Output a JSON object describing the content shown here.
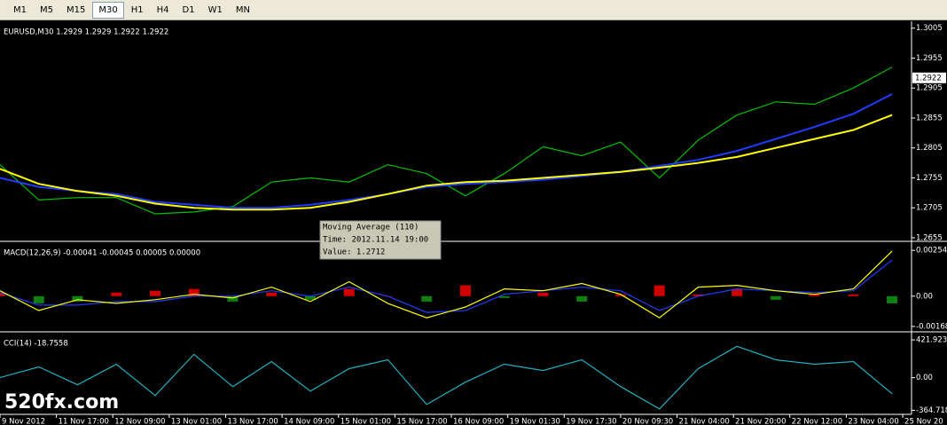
{
  "toolbar": {
    "buttons": [
      "M1",
      "M5",
      "M15",
      "M30",
      "H1",
      "H4",
      "D1",
      "W1",
      "MN"
    ],
    "active_index": 3
  },
  "last_price": 1.2922,
  "tooltip": {
    "lines": [
      "Moving Average (110)",
      "Time: 2012.11.14 19:00",
      "Value: 1.2712"
    ]
  },
  "watermark": "520fx.com",
  "chart_data": [
    {
      "type": "line",
      "title": "EURUSD,M30  1.2929 1.2929 1.2922 1.2922",
      "x": [
        0,
        22,
        44,
        66,
        88,
        110,
        132,
        154,
        176,
        198,
        220,
        242,
        264,
        286,
        308,
        330,
        352,
        374,
        396,
        418,
        440,
        462,
        484,
        506
      ],
      "xlim": [
        0,
        517
      ],
      "ylim": [
        1.26505,
        1.3015
      ],
      "yticks": [
        1.3005,
        1.2955,
        1.2905,
        1.2855,
        1.2805,
        1.2755,
        1.2705,
        1.2655
      ],
      "series": [
        {
          "kind": "line",
          "color": "#00c000",
          "values": [
            1.2777,
            1.2718,
            1.2722,
            1.2722,
            1.2695,
            1.2698,
            1.2707,
            1.2748,
            1.2755,
            1.2748,
            1.2777,
            1.2762,
            1.2725,
            1.2762,
            1.2807,
            1.2792,
            1.2815,
            1.2755,
            1.2818,
            1.286,
            1.2882,
            1.2878,
            1.2905,
            1.294
          ]
        },
        {
          "kind": "line",
          "color": "#1f3cff",
          "values": [
            1.2755,
            1.274,
            1.2733,
            1.2728,
            1.2715,
            1.271,
            1.2705,
            1.2705,
            1.271,
            1.2718,
            1.2728,
            1.274,
            1.2745,
            1.2748,
            1.2752,
            1.2758,
            1.2765,
            1.2775,
            1.2785,
            1.28,
            1.282,
            1.284,
            1.2862,
            1.2895
          ]
        },
        {
          "kind": "line",
          "color": "#ffff00",
          "values": [
            1.277,
            1.2745,
            1.2733,
            1.2725,
            1.2712,
            1.2705,
            1.2702,
            1.2702,
            1.2705,
            1.2715,
            1.2728,
            1.2742,
            1.2748,
            1.275,
            1.2755,
            1.276,
            1.2765,
            1.2772,
            1.278,
            1.279,
            1.2805,
            1.282,
            1.2835,
            1.286
          ]
        }
      ]
    },
    {
      "type": "line",
      "title": "MACD(12,26,9) -0.00041 -0.00045 0.00005 0.00000",
      "x": [
        0,
        22,
        44,
        66,
        88,
        110,
        132,
        154,
        176,
        198,
        220,
        242,
        264,
        286,
        308,
        330,
        352,
        374,
        396,
        418,
        440,
        462,
        484,
        506
      ],
      "xlim": [
        0,
        517
      ],
      "ylim": [
        -0.00193,
        0.00294
      ],
      "yticks": [
        0.00254,
        {
          "value": 0,
          "label": "0.00"
        },
        -0.00168
      ],
      "series": [
        {
          "kind": "bar",
          "color": "#d00000",
          "negative_color": "#108010",
          "values": [
            0.0002,
            -0.0004,
            -0.0003,
            0.0002,
            0.0003,
            0.0004,
            -0.0003,
            0.0002,
            -0.0002,
            0.0004,
            0.0,
            -0.0003,
            0.0006,
            -0.0001,
            0.0002,
            -0.0003,
            0.0001,
            0.0006,
            0.0001,
            0.0004,
            -0.0002,
            0.0001,
            0.0001,
            -0.0004
          ]
        },
        {
          "kind": "line",
          "color": "#1f3cff",
          "values": [
            0.0002,
            -0.0005,
            -0.0005,
            -0.0003,
            -0.0003,
            0.0,
            0.0,
            0.0003,
            0.0,
            0.0005,
            0.0,
            -0.0009,
            -0.0008,
            0.0001,
            0.0003,
            0.0005,
            0.0003,
            -0.0008,
            0.0,
            0.0004,
            0.0003,
            0.0002,
            0.0003,
            0.002
          ]
        },
        {
          "kind": "line",
          "color": "#ffff00",
          "values": [
            0.0003,
            -0.0008,
            -0.0002,
            -0.0004,
            -0.0002,
            0.0001,
            -0.0001,
            0.0005,
            -0.0003,
            0.0008,
            -0.0004,
            -0.0012,
            -0.0006,
            0.0004,
            0.0003,
            0.0007,
            0.0001,
            -0.0012,
            0.0005,
            0.0006,
            0.0003,
            0.0001,
            0.0004,
            0.0025
          ]
        }
      ]
    },
    {
      "type": "line",
      "title": "CCI(14) -18.7558",
      "x": [
        0,
        22,
        44,
        66,
        88,
        110,
        132,
        154,
        176,
        198,
        220,
        242,
        264,
        286,
        308,
        330,
        352,
        374,
        396,
        418,
        440,
        462,
        484,
        506
      ],
      "xlim": [
        0,
        517
      ],
      "ylim": [
        -410,
        492
      ],
      "yticks": [
        421.9231,
        {
          "value": 0,
          "label": "0.00"
        },
        -364.718
      ],
      "xticks": [
        {
          "value": 0,
          "label": "9 Nov 2012"
        },
        {
          "value": 32,
          "label": "11 Nov 17:00"
        },
        {
          "value": 64,
          "label": "12 Nov 09:00"
        },
        {
          "value": 96,
          "label": "13 Nov 01:00"
        },
        {
          "value": 128,
          "label": "13 Nov 17:00"
        },
        {
          "value": 160,
          "label": "14 Nov 09:00"
        },
        {
          "value": 192,
          "label": "15 Nov 01:00"
        },
        {
          "value": 224,
          "label": "15 Nov 17:00"
        },
        {
          "value": 256,
          "label": "16 Nov 09:00"
        },
        {
          "value": 288,
          "label": "19 Nov 01:30"
        },
        {
          "value": 320,
          "label": "19 Nov 17:30"
        },
        {
          "value": 352,
          "label": "20 Nov 09:30"
        },
        {
          "value": 384,
          "label": "21 Nov 04:00"
        },
        {
          "value": 416,
          "label": "21 Nov 20:00"
        },
        {
          "value": 448,
          "label": "22 Nov 12:00"
        },
        {
          "value": 480,
          "label": "23 Nov 04:00"
        },
        {
          "value": 512,
          "label": "25 Nov 20"
        }
      ],
      "series": [
        {
          "kind": "line",
          "color": "#20b0c0",
          "values": [
            0,
            120,
            -80,
            150,
            -200,
            260,
            -100,
            180,
            -150,
            100,
            200,
            -300,
            -50,
            150,
            80,
            200,
            -100,
            -350,
            100,
            350,
            200,
            150,
            180,
            -180
          ]
        }
      ]
    }
  ]
}
